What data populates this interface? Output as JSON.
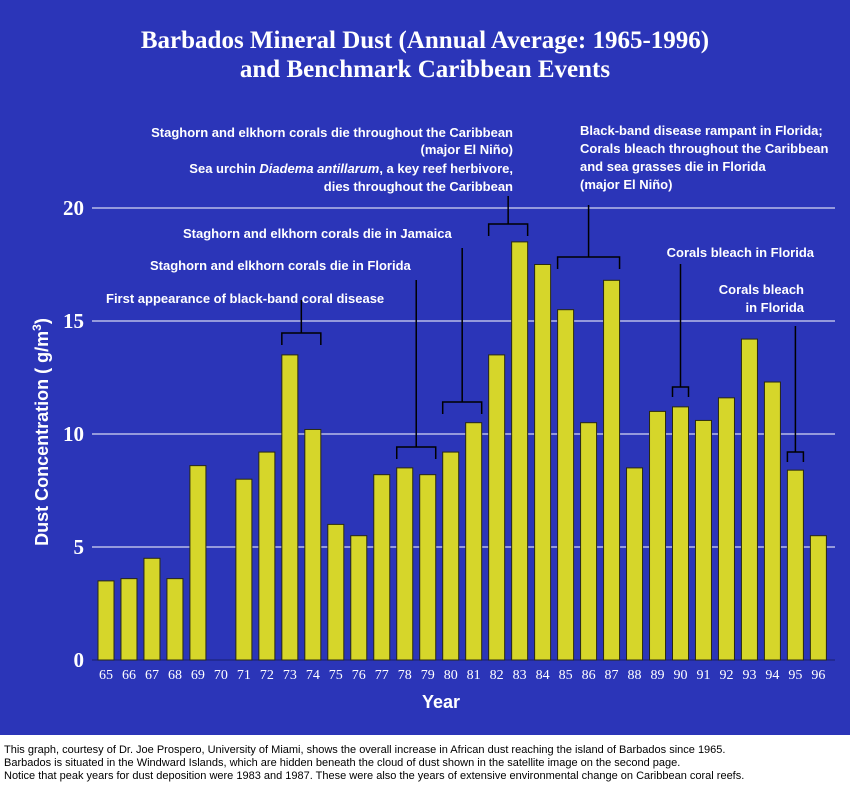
{
  "chart_data": {
    "type": "bar",
    "title_lines": [
      "Barbados Mineral Dust (Annual Average: 1965-1996)",
      "and Benchmark Caribbean Events"
    ],
    "xlabel": "Year",
    "ylabel_parts": [
      "Dust Concentration ( g/m",
      "3",
      ")"
    ],
    "ylim": [
      0,
      20
    ],
    "yticks": [
      0,
      5,
      10,
      15,
      20
    ],
    "grid": "horizontal",
    "bar_color": "#d6d62a",
    "background": "#2b35b8",
    "categories": [
      "65",
      "66",
      "67",
      "68",
      "69",
      "70",
      "71",
      "72",
      "73",
      "74",
      "75",
      "76",
      "77",
      "78",
      "79",
      "80",
      "81",
      "82",
      "83",
      "84",
      "85",
      "86",
      "87",
      "88",
      "89",
      "90",
      "91",
      "92",
      "93",
      "94",
      "95",
      "96"
    ],
    "values": [
      3.5,
      3.6,
      4.5,
      3.6,
      8.6,
      null,
      8.0,
      9.2,
      13.5,
      10.2,
      6.0,
      5.5,
      8.2,
      8.5,
      8.2,
      9.2,
      10.5,
      13.5,
      18.5,
      17.5,
      15.5,
      10.5,
      16.8,
      8.5,
      11.0,
      11.2,
      10.6,
      11.6,
      14.2,
      12.3,
      8.4,
      5.5
    ],
    "annotations": [
      {
        "lines": [
          "First appearance of black-band coral disease"
        ],
        "years": [
          "73",
          "74"
        ]
      },
      {
        "lines": [
          "Staghorn and elkhorn corals die in Florida"
        ],
        "years": [
          "78",
          "79"
        ]
      },
      {
        "lines": [
          "Staghorn and elkhorn corals die in Jamaica"
        ],
        "years": [
          "80",
          "81"
        ]
      },
      {
        "lines": [
          "Staghorn and elkhorn corals die throughout the Caribbean",
          "(major El Niño)"
        ],
        "years": [
          "82",
          "83"
        ]
      },
      {
        "lines": [
          "Black-band disease rampant in Florida;",
          "Corals bleach throughout the Caribbean",
          "and sea grasses die in Florida",
          "(major El Niño)"
        ],
        "years": [
          "85",
          "87"
        ]
      },
      {
        "lines": [
          "Corals bleach in Florida"
        ],
        "years": [
          "90"
        ]
      },
      {
        "lines": [
          "Corals bleach",
          "in Florida"
        ],
        "years": [
          "95"
        ]
      }
    ],
    "urchin_note": {
      "prefix": "Sea urchin ",
      "species": "Diadema antillarum",
      "suffix": ", a key reef herbivore,",
      "line2": "dies throughout the Caribbean"
    }
  },
  "caption": [
    "This graph, courtesy of Dr. Joe Prospero, University of Miami, shows the overall increase in African dust reaching the island of Barbados since 1965.",
    "Barbados is situated in the Windward Islands, which are hidden beneath the cloud of dust shown in the satellite image on the second page.",
    "Notice that peak years for dust deposition were 1983 and 1987. These were also the years of extensive environmental change on Caribbean coral reefs."
  ]
}
